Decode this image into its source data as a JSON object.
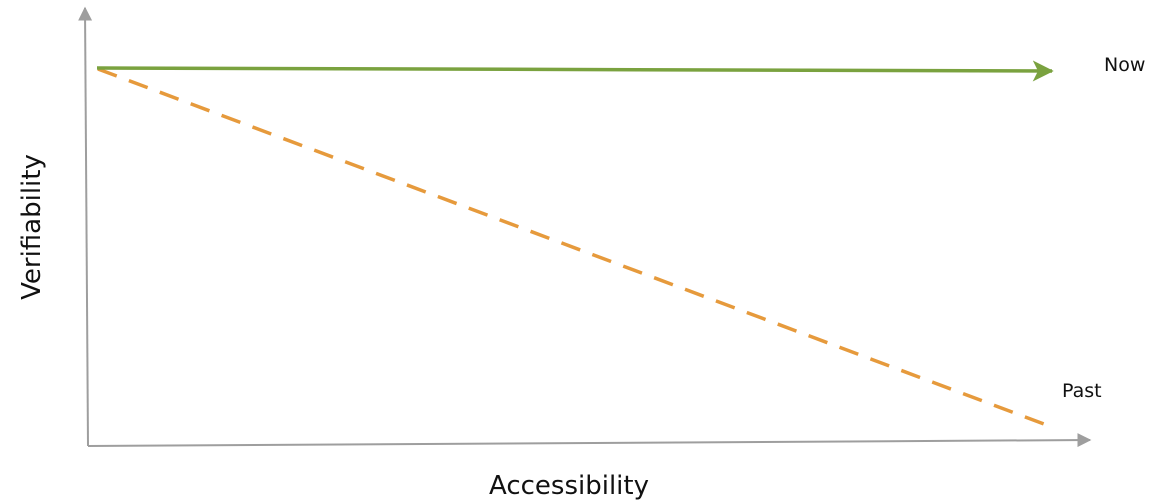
{
  "axes": {
    "x_label": "Accessibility",
    "y_label": "Verifiability",
    "axis_color": "#9e9e9e"
  },
  "lines": {
    "now": {
      "label": "Now",
      "color": "#7aa23f",
      "style": "solid",
      "trend": "flat-high",
      "arrowhead": true
    },
    "past": {
      "label": "Past",
      "color": "#e69a3c",
      "style": "dashed",
      "trend": "decreasing"
    }
  }
}
